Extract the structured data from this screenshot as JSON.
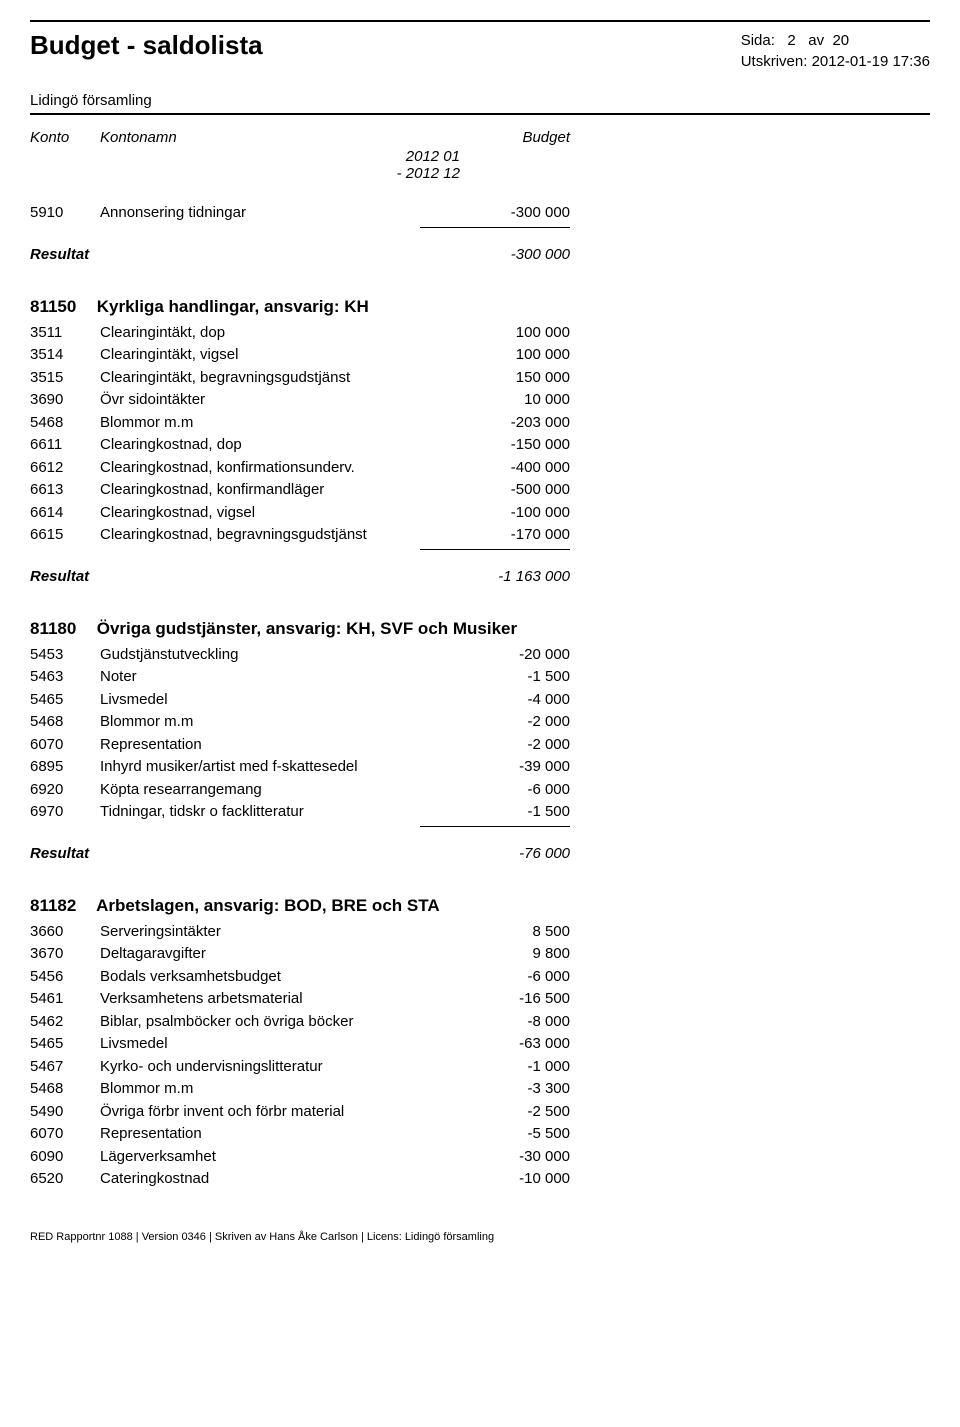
{
  "header": {
    "title": "Budget - saldolista",
    "subtitle": "Lidingö församling",
    "page_label": "Sida:",
    "page_num": "2",
    "page_of": "av",
    "page_total": "20",
    "printed_label": "Utskriven:",
    "printed_value": "2012-01-19 17:36"
  },
  "columns": {
    "konto": "Konto",
    "name": "Kontonamn",
    "budget": "Budget",
    "period1": "2012 01",
    "period2": "- 2012 12"
  },
  "first_row": {
    "konto": "5910",
    "name": "Annonsering tidningar",
    "value": "-300 000"
  },
  "first_result": {
    "label": "Resultat",
    "value": "-300 000"
  },
  "section1": {
    "code": "81150",
    "title": "Kyrkliga handlingar,  ansvarig: KH",
    "rows": [
      {
        "konto": "3511",
        "name": "Clearingintäkt, dop",
        "value": "100 000"
      },
      {
        "konto": "3514",
        "name": "Clearingintäkt, vigsel",
        "value": "100 000"
      },
      {
        "konto": "3515",
        "name": "Clearingintäkt, begravningsgudstjänst",
        "value": "150 000"
      },
      {
        "konto": "3690",
        "name": "Övr sidointäkter",
        "value": "10 000"
      },
      {
        "konto": "5468",
        "name": "Blommor m.m",
        "value": "-203 000"
      },
      {
        "konto": "6611",
        "name": "Clearingkostnad, dop",
        "value": "-150 000"
      },
      {
        "konto": "6612",
        "name": "Clearingkostnad, konfirmationsunderv.",
        "value": "-400 000"
      },
      {
        "konto": "6613",
        "name": "Clearingkostnad, konfirmandläger",
        "value": "-500 000"
      },
      {
        "konto": "6614",
        "name": "Clearingkostnad, vigsel",
        "value": "-100 000"
      },
      {
        "konto": "6615",
        "name": "Clearingkostnad, begravningsgudstjänst",
        "value": "-170 000"
      }
    ],
    "result_label": "Resultat",
    "result_value": "-1 163 000"
  },
  "section2": {
    "code": "81180",
    "title": "Övriga gudstjänster,  ansvarig: KH, SVF och Musiker",
    "rows": [
      {
        "konto": "5453",
        "name": "Gudstjänstutveckling",
        "value": "-20 000"
      },
      {
        "konto": "5463",
        "name": "Noter",
        "value": "-1 500"
      },
      {
        "konto": "5465",
        "name": "Livsmedel",
        "value": "-4 000"
      },
      {
        "konto": "5468",
        "name": "Blommor m.m",
        "value": "-2 000"
      },
      {
        "konto": "6070",
        "name": "Representation",
        "value": "-2 000"
      },
      {
        "konto": "6895",
        "name": "Inhyrd musiker/artist med f-skattesedel",
        "value": "-39 000"
      },
      {
        "konto": "6920",
        "name": "Köpta researrangemang",
        "value": "-6 000"
      },
      {
        "konto": "6970",
        "name": "Tidningar, tidskr o facklitteratur",
        "value": "-1 500"
      }
    ],
    "result_label": "Resultat",
    "result_value": "-76 000"
  },
  "section3": {
    "code": "81182",
    "title": "Arbetslagen,  ansvarig: BOD, BRE och STA",
    "rows": [
      {
        "konto": "3660",
        "name": "Serveringsintäkter",
        "value": "8 500"
      },
      {
        "konto": "3670",
        "name": "Deltagaravgifter",
        "value": "9 800"
      },
      {
        "konto": "5456",
        "name": "Bodals verksamhetsbudget",
        "value": "-6 000"
      },
      {
        "konto": "5461",
        "name": "Verksamhetens arbetsmaterial",
        "value": "-16 500"
      },
      {
        "konto": "5462",
        "name": "Biblar, psalmböcker och övriga böcker",
        "value": "-8 000"
      },
      {
        "konto": "5465",
        "name": "Livsmedel",
        "value": "-63 000"
      },
      {
        "konto": "5467",
        "name": "Kyrko- och undervisningslitteratur",
        "value": "-1 000"
      },
      {
        "konto": "5468",
        "name": "Blommor m.m",
        "value": "-3 300"
      },
      {
        "konto": "5490",
        "name": "Övriga förbr invent och förbr material",
        "value": "-2 500"
      },
      {
        "konto": "6070",
        "name": "Representation",
        "value": "-5 500"
      },
      {
        "konto": "6090",
        "name": "Lägerverksamhet",
        "value": "-30 000"
      },
      {
        "konto": "6520",
        "name": "Cateringkostnad",
        "value": "-10 000"
      }
    ]
  },
  "footer": {
    "text": "RED Rapportnr 1088  |  Version 0346  |  Skriven av Hans Åke Carlson  |  Licens: Lidingö församling"
  }
}
